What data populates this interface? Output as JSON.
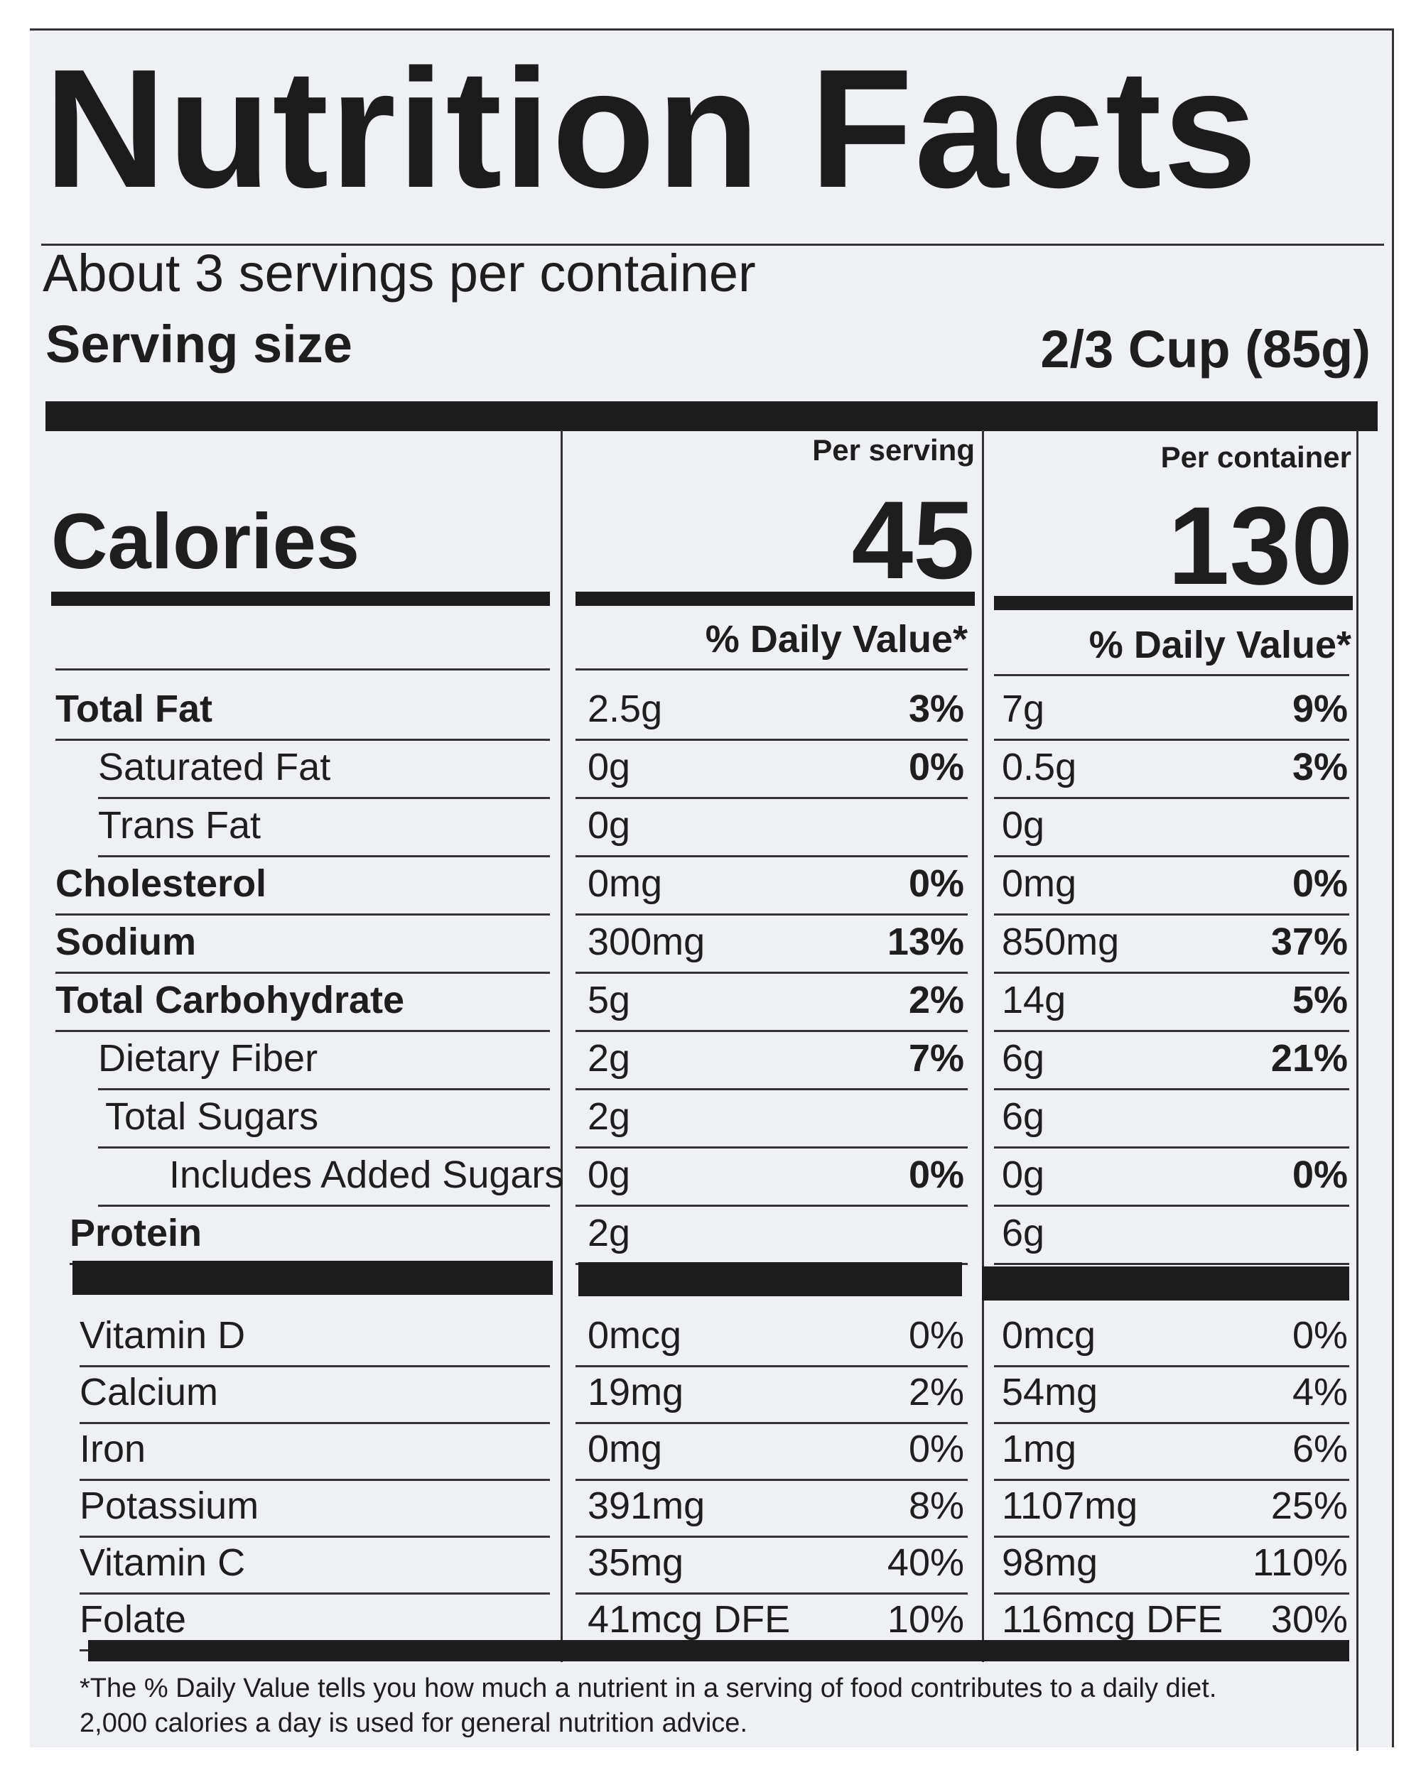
{
  "title": "Nutrition Facts",
  "servings_per_container": "About 3 servings per container",
  "serving_size_label": "Serving size",
  "serving_size_value": "2/3 Cup (85g)",
  "per_serving_label": "Per serving",
  "per_container_label": "Per container",
  "calories_label": "Calories",
  "calories_per_serving": "45",
  "calories_per_container": "130",
  "daily_value_header": "% Daily Value*",
  "nutrients": [
    {
      "name": "Total Fat",
      "serving_amount": "2.5g",
      "serving_dv": "3%",
      "container_amount": "7g",
      "container_dv": "9%"
    },
    {
      "name": "Saturated Fat",
      "serving_amount": "0g",
      "serving_dv": "0%",
      "container_amount": "0.5g",
      "container_dv": "3%"
    },
    {
      "name": "Trans Fat",
      "serving_amount": "0g",
      "serving_dv": "",
      "container_amount": "0g",
      "container_dv": ""
    },
    {
      "name": "Cholesterol",
      "serving_amount": "0mg",
      "serving_dv": "0%",
      "container_amount": "0mg",
      "container_dv": "0%"
    },
    {
      "name": "Sodium",
      "serving_amount": "300mg",
      "serving_dv": "13%",
      "container_amount": "850mg",
      "container_dv": "37%"
    },
    {
      "name": "Total Carbohydrate",
      "serving_amount": "5g",
      "serving_dv": "2%",
      "container_amount": "14g",
      "container_dv": "5%"
    },
    {
      "name": "Dietary Fiber",
      "serving_amount": "2g",
      "serving_dv": "7%",
      "container_amount": "6g",
      "container_dv": "21%"
    },
    {
      "name": "Total Sugars",
      "serving_amount": "2g",
      "serving_dv": "",
      "container_amount": "6g",
      "container_dv": ""
    },
    {
      "name": "Includes Added Sugars",
      "serving_amount": "0g",
      "serving_dv": "0%",
      "container_amount": "0g",
      "container_dv": "0%"
    },
    {
      "name": "Protein",
      "serving_amount": "2g",
      "serving_dv": "",
      "container_amount": "6g",
      "container_dv": ""
    }
  ],
  "vitamins": [
    {
      "name": "Vitamin D",
      "serving_amount": "0mcg",
      "serving_dv": "0%",
      "container_amount": "0mcg",
      "container_dv": "0%"
    },
    {
      "name": "Calcium",
      "serving_amount": "19mg",
      "serving_dv": "2%",
      "container_amount": "54mg",
      "container_dv": "4%"
    },
    {
      "name": "Iron",
      "serving_amount": "0mg",
      "serving_dv": "0%",
      "container_amount": "1mg",
      "container_dv": "6%"
    },
    {
      "name": "Potassium",
      "serving_amount": "391mg",
      "serving_dv": "8%",
      "container_amount": "1107mg",
      "container_dv": "25%"
    },
    {
      "name": "Vitamin C",
      "serving_amount": "35mg",
      "serving_dv": "40%",
      "container_amount": "98mg",
      "container_dv": "110%"
    },
    {
      "name": "Folate",
      "serving_amount": "41mcg DFE",
      "serving_dv": "10%",
      "container_amount": "116mcg DFE",
      "container_dv": "30%"
    }
  ],
  "footnote_line1": "*The % Daily Value tells you how much a nutrient in a serving of food contributes to a daily diet.",
  "footnote_line2": "2,000 calories a day is used for general nutrition advice."
}
